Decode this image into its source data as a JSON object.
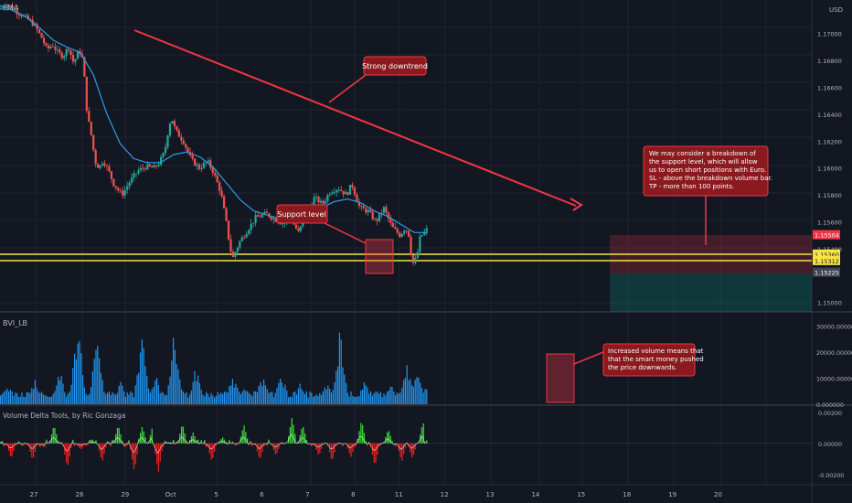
{
  "chart_data": [
    {
      "type": "candlestick",
      "title": "EMA",
      "currency": "USD",
      "y_ticks": [
        "1.17000",
        "1.16800",
        "1.16600",
        "1.16400",
        "1.16200",
        "1.16000",
        "1.15800",
        "1.15600",
        "1.15400",
        "1.15000"
      ],
      "ylim": [
        1.1493,
        1.1725
      ],
      "price_labels": [
        {
          "text": "1.15504",
          "value": 1.15504,
          "color": "#f23645"
        },
        {
          "text": "1.15360",
          "value": 1.1536,
          "color": "#f5e342"
        },
        {
          "text": "1.15312",
          "value": 1.15312,
          "color": "#f5e342"
        },
        {
          "text": "1.15225",
          "value": 1.15225,
          "color": "#434651"
        }
      ],
      "support_lines": [
        1.1536,
        1.15312
      ],
      "trend_line": {
        "from": [
          "Sep 29",
          1.1699
        ],
        "to": [
          "Oct 12",
          1.1573
        ]
      },
      "short_position": {
        "entry": 1.15504,
        "stop": 1.1566,
        "target": 1.15225
      },
      "annotations": [
        {
          "text": [
            "Strong downtrend"
          ],
          "color": "#f23645"
        },
        {
          "text": [
            "Support level"
          ],
          "color": "#f23645"
        },
        {
          "text": [
            "We may consider a breakdown of",
            "the support level, which will allow",
            "us to open short positions with Euro.",
            "SL - above the breakdown volume bar.",
            "TP - more than 100 points."
          ],
          "color": "#f23645"
        }
      ],
      "path_waypoints": [
        [
          0,
          1.1718
        ],
        [
          0.03,
          1.1722
        ],
        [
          0.07,
          1.1716
        ],
        [
          0.1,
          1.1712
        ],
        [
          0.13,
          1.1707
        ],
        [
          0.16,
          1.1697
        ],
        [
          0.18,
          1.1688
        ],
        [
          0.2,
          1.1692
        ],
        [
          0.22,
          1.1686
        ],
        [
          0.24,
          1.1683
        ],
        [
          0.26,
          1.169
        ],
        [
          0.28,
          1.1678
        ],
        [
          0.3,
          1.1688
        ],
        [
          0.315,
          1.168
        ],
        [
          0.33,
          1.164
        ],
        [
          0.345,
          1.1625
        ],
        [
          0.36,
          1.1605
        ],
        [
          0.375,
          1.16
        ],
        [
          0.39,
          1.1606
        ],
        [
          0.41,
          1.1598
        ],
        [
          0.43,
          1.1588
        ],
        [
          0.46,
          1.158
        ],
        [
          0.49,
          1.159
        ],
        [
          0.52,
          1.1598
        ],
        [
          0.55,
          1.1601
        ],
        [
          0.58,
          1.16
        ],
        [
          0.6,
          1.1604
        ],
        [
          0.62,
          1.1612
        ],
        [
          0.635,
          1.163
        ],
        [
          0.645,
          1.1638
        ],
        [
          0.66,
          1.1628
        ],
        [
          0.69,
          1.162
        ],
        [
          0.72,
          1.1606
        ],
        [
          0.75,
          1.16
        ],
        [
          0.78,
          1.1605
        ],
        [
          0.8,
          1.1598
        ],
        [
          0.83,
          1.1582
        ],
        [
          0.85,
          1.156
        ],
        [
          0.865,
          1.154
        ],
        [
          0.875,
          1.1533
        ],
        [
          0.885,
          1.1538
        ],
        [
          0.9,
          1.1545
        ],
        [
          0.93,
          1.1554
        ],
        [
          0.96,
          1.1563
        ],
        [
          1.0,
          1.1566
        ],
        [
          1.03,
          1.1562
        ],
        [
          1.06,
          1.1559
        ],
        [
          1.09,
          1.1563
        ],
        [
          1.12,
          1.1552
        ],
        [
          1.15,
          1.1565
        ],
        [
          1.18,
          1.1578
        ],
        [
          1.21,
          1.1573
        ],
        [
          1.24,
          1.1583
        ],
        [
          1.27,
          1.1585
        ],
        [
          1.3,
          1.158
        ],
        [
          1.32,
          1.1588
        ],
        [
          1.35,
          1.157
        ],
        [
          1.38,
          1.1568
        ],
        [
          1.41,
          1.156
        ],
        [
          1.44,
          1.157
        ],
        [
          1.47,
          1.1556
        ],
        [
          1.5,
          1.155
        ],
        [
          1.52,
          1.1556
        ],
        [
          1.535,
          1.1549
        ],
        [
          1.545,
          1.1529
        ],
        [
          1.555,
          1.153
        ],
        [
          1.565,
          1.1536
        ],
        [
          1.575,
          1.1548
        ],
        [
          1.59,
          1.1552
        ],
        [
          1.6,
          1.1554
        ]
      ],
      "ma_waypoints": [
        [
          0,
          1.1721
        ],
        [
          0.05,
          1.1717
        ],
        [
          0.1,
          1.1712
        ],
        [
          0.15,
          1.1704
        ],
        [
          0.2,
          1.1695
        ],
        [
          0.25,
          1.169
        ],
        [
          0.3,
          1.1686
        ],
        [
          0.35,
          1.1669
        ],
        [
          0.4,
          1.164
        ],
        [
          0.45,
          1.1618
        ],
        [
          0.5,
          1.1607
        ],
        [
          0.55,
          1.1604
        ],
        [
          0.6,
          1.1604
        ],
        [
          0.65,
          1.161
        ],
        [
          0.7,
          1.1612
        ],
        [
          0.75,
          1.1608
        ],
        [
          0.8,
          1.16
        ],
        [
          0.85,
          1.1588
        ],
        [
          0.9,
          1.1576
        ],
        [
          0.95,
          1.1568
        ],
        [
          1.0,
          1.1565
        ],
        [
          1.05,
          1.1562
        ],
        [
          1.1,
          1.1561
        ],
        [
          1.15,
          1.1563
        ],
        [
          1.2,
          1.157
        ],
        [
          1.25,
          1.1575
        ],
        [
          1.3,
          1.1577
        ],
        [
          1.35,
          1.1574
        ],
        [
          1.4,
          1.1568
        ],
        [
          1.45,
          1.1564
        ],
        [
          1.5,
          1.1558
        ],
        [
          1.55,
          1.1552
        ],
        [
          1.6,
          1.1552
        ]
      ]
    },
    {
      "type": "bar",
      "title": "BVI_LB",
      "y_ticks": [
        "30000.000000",
        "20000.000000",
        "10000.000000",
        "0.000000"
      ],
      "ylim": [
        0,
        35000
      ],
      "annotation": {
        "text": [
          "Increased volume means that",
          "that the smart money pushed",
          "the price downwards."
        ],
        "color": "#f23645"
      },
      "peaks": [
        [
          0.03,
          8000
        ],
        [
          0.13,
          11000
        ],
        [
          0.22,
          14000
        ],
        [
          0.29,
          33500
        ],
        [
          0.36,
          26000
        ],
        [
          0.45,
          9000
        ],
        [
          0.53,
          31000
        ],
        [
          0.58,
          12000
        ],
        [
          0.65,
          29000
        ],
        [
          0.73,
          15000
        ],
        [
          0.87,
          12000
        ],
        [
          0.91,
          9500
        ],
        [
          0.98,
          12000
        ],
        [
          1.05,
          14000
        ],
        [
          1.12,
          8500
        ],
        [
          1.22,
          9000
        ],
        [
          1.27,
          31500
        ],
        [
          1.36,
          10000
        ],
        [
          1.41,
          7500
        ],
        [
          1.46,
          8500
        ],
        [
          1.52,
          17500
        ],
        [
          1.555,
          15500
        ],
        [
          1.6,
          10500
        ]
      ]
    },
    {
      "type": "area",
      "title": "Volume Delta Tools, by Ric Gonzaga",
      "y_ticks": [
        "0.00200",
        "0.00000",
        "-0.00200"
      ],
      "ylim": [
        -0.0026,
        0.0024
      ],
      "peaks": [
        [
          0.04,
          -0.001
        ],
        [
          0.12,
          -0.0011
        ],
        [
          0.2,
          0.0012
        ],
        [
          0.25,
          -0.0016
        ],
        [
          0.3,
          -0.0004
        ],
        [
          0.38,
          -0.0012
        ],
        [
          0.44,
          0.0012
        ],
        [
          0.5,
          -0.0018
        ],
        [
          0.53,
          0.0011
        ],
        [
          0.57,
          0.0012
        ],
        [
          0.59,
          -0.0019
        ],
        [
          0.68,
          0.0013
        ],
        [
          0.72,
          0.0007
        ],
        [
          0.79,
          -0.0012
        ],
        [
          0.83,
          0.0004
        ],
        [
          0.91,
          0.0012
        ],
        [
          0.97,
          -0.0011
        ],
        [
          1.03,
          -0.0008
        ],
        [
          1.09,
          0.0017
        ],
        [
          1.13,
          0.0012
        ],
        [
          1.19,
          -0.0008
        ],
        [
          1.24,
          -0.0012
        ],
        [
          1.31,
          -0.0009
        ],
        [
          1.35,
          0.0015
        ],
        [
          1.4,
          -0.0015
        ],
        [
          1.45,
          0.0009
        ],
        [
          1.5,
          -0.0012
        ],
        [
          1.54,
          -0.001
        ],
        [
          1.58,
          0.0014
        ],
        [
          1.6,
          0.0003
        ]
      ]
    }
  ],
  "x_axis": {
    "labels": [
      "27",
      "28",
      "29",
      "Oct",
      "5",
      "6",
      "7",
      "8",
      "11",
      "12",
      "13",
      "14",
      "15",
      "18",
      "19",
      "20"
    ],
    "positions": [
      0,
      0.2,
      0.4,
      0.6,
      0.8,
      1.0,
      1.2,
      1.4,
      1.6,
      1.8,
      2.0,
      2.2,
      2.4,
      2.6,
      2.8,
      3.0
    ]
  }
}
